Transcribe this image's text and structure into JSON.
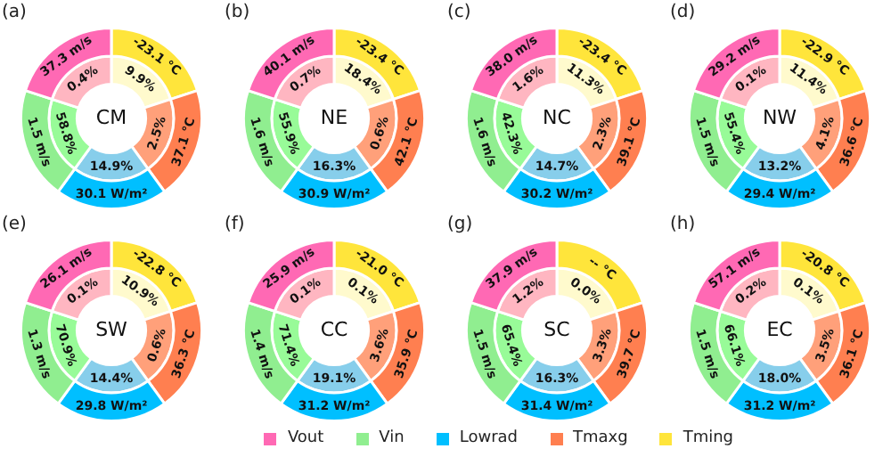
{
  "chart_data": [
    {
      "type": "donut",
      "title": "(a)",
      "legend": "bottom",
      "categories": [
        "Tming",
        "Tmaxg",
        "Lowrad",
        "Vin",
        "Vout"
      ],
      "series": [
        {
          "colors": [
            "#ffe53b",
            "#ff7f50",
            "#00bfff",
            "#90ee90",
            "#ff69b4"
          ],
          "values": [
            20,
            20,
            20,
            20,
            20
          ]
        },
        {
          "colors": [
            "#fffacd",
            "#ffa07a",
            "#87ceeb",
            "#98fb98",
            "#ffb6c1"
          ],
          "values": [
            20,
            20,
            20,
            20,
            20
          ]
        }
      ],
      "annotations": [
        "CM",
        {
          "text": "-23.1 °C",
          "x": "Tming"
        },
        {
          "text": "37.1 °C",
          "x": "Tmaxg"
        },
        {
          "text": "30.1 W/m²",
          "x": "Lowrad"
        },
        {
          "text": "1.5 m/s",
          "x": "Vin"
        },
        {
          "text": "37.3 m/s",
          "x": "Vout"
        },
        {
          "text": "9.9%",
          "x": "Tming"
        },
        {
          "text": "2.5%",
          "x": "Tmaxg"
        },
        {
          "text": "14.9%",
          "x": "Lowrad"
        },
        {
          "text": "58.8%",
          "x": "Vin"
        },
        {
          "text": "0.4%",
          "x": "Vout"
        }
      ]
    },
    {
      "type": "donut",
      "title": "(b)",
      "categories": [
        null,
        null,
        null,
        null,
        null
      ],
      "series": [
        {
          "colors": [
            "#ffe53b",
            "#ff7f50",
            "#00bfff",
            "#90ee90",
            "#ff69b4"
          ],
          "values": [
            20,
            20,
            20,
            20,
            20
          ]
        },
        {
          "colors": [
            "#fffacd",
            "#ffa07a",
            "#87ceeb",
            "#98fb98",
            "#ffb6c1"
          ],
          "values": [
            20,
            20,
            20,
            20,
            20
          ]
        }
      ],
      "annotations": [
        "NE",
        "-23.4 °C",
        "42.1 °C",
        "30.9 W/m²",
        "1.6 m/s",
        "40.1 m/s",
        "18.4%",
        "0.6%",
        "16.3%",
        "55.9%",
        "0.7%"
      ]
    },
    {
      "type": "donut",
      "title": "(c)",
      "categories": [
        null,
        null,
        null,
        null,
        null
      ],
      "series": [
        {
          "colors": [
            "#ffe53b",
            "#ff7f50",
            "#00bfff",
            "#90ee90",
            "#ff69b4"
          ],
          "values": [
            20,
            20,
            20,
            20,
            20
          ]
        },
        {
          "colors": [
            "#fffacd",
            "#ffa07a",
            "#87ceeb",
            "#98fb98",
            "#ffb6c1"
          ],
          "values": [
            20,
            20,
            20,
            20,
            20
          ]
        }
      ],
      "annotations": [
        "NC",
        "-23.4 °C",
        "39.1 °C",
        "30.2 W/m²",
        "1.6 m/s",
        "38.0 m/s",
        "11.3%",
        "2.3%",
        "14.7%",
        "42.3%",
        "1.6%"
      ]
    },
    {
      "type": "donut",
      "title": "(d)",
      "categories": [
        null,
        null,
        null,
        null,
        null
      ],
      "series": [
        {
          "colors": [
            "#ffe53b",
            "#ff7f50",
            "#00bfff",
            "#90ee90",
            "#ff69b4"
          ],
          "values": [
            20,
            20,
            20,
            20,
            20
          ]
        },
        {
          "colors": [
            "#fffacd",
            "#ffa07a",
            "#87ceeb",
            "#98fb98",
            "#ffb6c1"
          ],
          "values": [
            20,
            20,
            20,
            20,
            20
          ]
        }
      ],
      "annotations": [
        "NW",
        "-22.9 °C",
        "36.6 °C",
        "29.4 W/m²",
        "1.5 m/s",
        "29.2 m/s",
        "11.4%",
        "4.1%",
        "13.2%",
        "55.4%",
        "0.1%"
      ]
    },
    {
      "type": "donut",
      "title": "(e)",
      "categories": [
        null,
        null,
        null,
        null,
        null
      ],
      "series": [
        {
          "colors": [
            "#ffe53b",
            "#ff7f50",
            "#00bfff",
            "#90ee90",
            "#ff69b4"
          ],
          "values": [
            20,
            20,
            20,
            20,
            20
          ]
        },
        {
          "colors": [
            "#fffacd",
            "#ffa07a",
            "#87ceeb",
            "#98fb98",
            "#ffb6c1"
          ],
          "values": [
            20,
            20,
            20,
            20,
            20
          ]
        }
      ],
      "annotations": [
        "SW",
        "-22.8 °C",
        "36.3 °C",
        "29.8 W/m²",
        "1.3 m/s",
        "26.1 m/s",
        "10.9%",
        "0.6%",
        "14.4%",
        "70.9%",
        "0.1%"
      ]
    },
    {
      "type": "donut",
      "title": "(f)",
      "categories": [
        null,
        null,
        null,
        null,
        null
      ],
      "series": [
        {
          "colors": [
            "#ffe53b",
            "#ff7f50",
            "#00bfff",
            "#90ee90",
            "#ff69b4"
          ],
          "values": [
            20,
            20,
            20,
            20,
            20
          ]
        },
        {
          "colors": [
            "#fffacd",
            "#ffa07a",
            "#87ceeb",
            "#98fb98",
            "#ffb6c1"
          ],
          "values": [
            20,
            20,
            20,
            20,
            20
          ]
        }
      ],
      "annotations": [
        "CC",
        "-21.0 °C",
        "35.9 °C",
        "31.2 W/m²",
        "1.4 m/s",
        "25.9 m/s",
        "0.1%",
        "3.6%",
        "19.1%",
        "71.4%",
        "0.1%"
      ]
    },
    {
      "type": "donut",
      "title": "(g)",
      "categories": [
        null,
        null,
        null,
        null,
        null
      ],
      "series": [
        {
          "colors": [
            "#ffe53b",
            "#ff7f50",
            "#00bfff",
            "#90ee90",
            "#ff69b4"
          ],
          "values": [
            20,
            20,
            20,
            20,
            20
          ]
        },
        {
          "colors": [
            "#fffacd",
            "#ffa07a",
            "#87ceeb",
            "#98fb98",
            "#ffb6c1"
          ],
          "values": [
            20,
            20,
            20,
            20,
            20
          ]
        }
      ],
      "annotations": [
        "SC",
        "-- °C",
        "39.7 °C",
        "31.4 W/m²",
        "1.5 m/s",
        "37.9 m/s",
        "0.0%",
        "3.3%",
        "16.3%",
        "65.4%",
        "1.2%"
      ]
    },
    {
      "type": "donut",
      "title": "(h)",
      "categories": [
        null,
        null,
        null,
        null,
        null
      ],
      "series": [
        {
          "colors": [
            "#ffe53b",
            "#ff7f50",
            "#00bfff",
            "#90ee90",
            "#ff69b4"
          ],
          "values": [
            20,
            20,
            20,
            20,
            20
          ]
        },
        {
          "colors": [
            "#fffacd",
            "#ffa07a",
            "#87ceeb",
            "#98fb98",
            "#ffb6c1"
          ],
          "values": [
            20,
            20,
            20,
            20,
            20
          ]
        }
      ],
      "annotations": [
        "EC",
        "-20.8 °C",
        "36.1 °C",
        "31.2 W/m²",
        "1.5 m/s",
        "57.1 m/s",
        "0.1%",
        "3.5%",
        "18.0%",
        "66.1%",
        "0.2%"
      ]
    }
  ]
}
